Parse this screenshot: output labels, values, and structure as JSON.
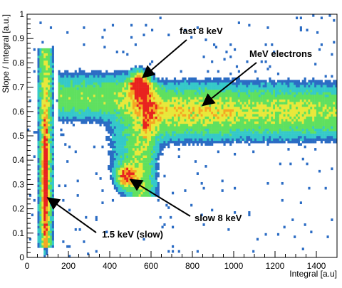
{
  "chart_data": {
    "type": "heatmap",
    "xlabel": "Integral [a.u]",
    "ylabel": "Slope / Integral [a.u.]",
    "xlim": [
      0,
      1500
    ],
    "ylim": [
      0,
      1
    ],
    "x_ticks": [
      0,
      200,
      400,
      600,
      800,
      1000,
      1200,
      1400
    ],
    "x_tick_labels": [
      "0",
      "200",
      "400",
      "600",
      "800",
      "1000",
      "1200",
      "1400"
    ],
    "y_ticks": [
      0,
      0.1,
      0.2,
      0.3,
      0.4,
      0.5,
      0.6,
      0.7,
      0.8,
      0.9,
      1
    ],
    "y_tick_labels": [
      "0",
      "0.1",
      "0.2",
      "0.3",
      "0.4",
      "0.5",
      "0.6",
      "0.7",
      "0.8",
      "0.9",
      "1"
    ],
    "grid": false,
    "colors": {
      "outer": "#2b6cc4",
      "mid": "#35c9c9",
      "low": "#5fe05f",
      "medium": "#e8e83a",
      "high": "#f5a623",
      "peak": "#e8231f"
    },
    "regions": [
      {
        "label": "1.5 keV (slow)",
        "x_center": 90,
        "y_center": 0.3
      },
      {
        "label": "fast 8 keV",
        "x_center": 550,
        "y_center": 0.71
      },
      {
        "label": "slow 8 keV",
        "x_center": 480,
        "y_center": 0.33
      },
      {
        "label": "MeV electrons",
        "x_center": 950,
        "y_center": 0.6
      }
    ],
    "annotations": [
      {
        "text": "fast 8 keV",
        "arrow_to": [
          560,
          0.74
        ]
      },
      {
        "text": "MeV electrons",
        "arrow_to": [
          850,
          0.625
        ]
      },
      {
        "text": "slow 8 keV",
        "arrow_to": [
          500,
          0.32
        ]
      },
      {
        "text": "1.5 keV (slow)",
        "arrow_to": [
          100,
          0.245
        ]
      }
    ]
  }
}
